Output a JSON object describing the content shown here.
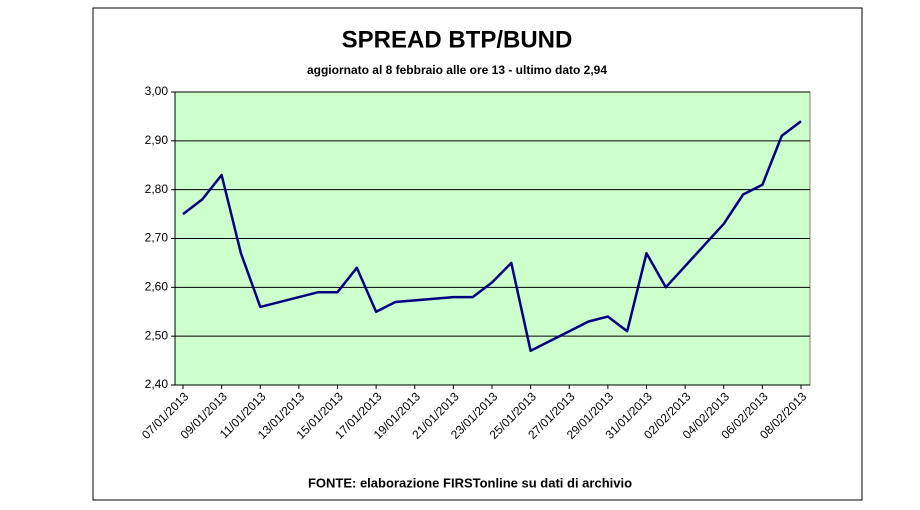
{
  "chart_data": {
    "type": "line",
    "title": "SPREAD  BTP/BUND",
    "subtitle": "aggiornato al 8 febbraio alle ore 13 - ultimo dato 2,94",
    "source": "FONTE: elaborazione FIRSTonline su dati di archivio",
    "x": [
      "07/01/2013",
      "08/01/2013",
      "09/01/2013",
      "10/01/2013",
      "11/01/2013",
      "14/01/2013",
      "15/01/2013",
      "16/01/2013",
      "17/01/2013",
      "18/01/2013",
      "21/01/2013",
      "22/01/2013",
      "23/01/2013",
      "24/01/2013",
      "25/01/2013",
      "28/01/2013",
      "29/01/2013",
      "30/01/2013",
      "31/01/2013",
      "01/02/2013",
      "04/02/2013",
      "05/02/2013",
      "06/02/2013",
      "07/02/2013",
      "08/02/2013"
    ],
    "values": [
      2.75,
      2.78,
      2.83,
      2.67,
      2.56,
      2.59,
      2.59,
      2.64,
      2.55,
      2.57,
      2.58,
      2.58,
      2.61,
      2.65,
      2.47,
      2.53,
      2.54,
      2.51,
      2.67,
      2.6,
      2.73,
      2.79,
      2.81,
      2.91,
      2.94
    ],
    "color": "#000080",
    "xlim": [
      "07/01/2013",
      "08/02/2013"
    ],
    "xticks": [
      "07/01/2013",
      "09/01/2013",
      "11/01/2013",
      "13/01/2013",
      "15/01/2013",
      "17/01/2013",
      "19/01/2013",
      "21/01/2013",
      "23/01/2013",
      "25/01/2013",
      "27/01/2013",
      "29/01/2013",
      "31/01/2013",
      "02/02/2013",
      "04/02/2013",
      "06/02/2013",
      "08/02/2013"
    ],
    "ylim": [
      2.4,
      3.0
    ],
    "yticks": [
      {
        "value": 2.4,
        "label": "2,40"
      },
      {
        "value": 2.5,
        "label": "2,50"
      },
      {
        "value": 2.6,
        "label": "2,60"
      },
      {
        "value": 2.7,
        "label": "2,70"
      },
      {
        "value": 2.8,
        "label": "2,80"
      },
      {
        "value": 2.9,
        "label": "2,90"
      },
      {
        "value": 3.0,
        "label": "3,00"
      }
    ],
    "grid": true,
    "plot_background": "#ccffcc"
  }
}
